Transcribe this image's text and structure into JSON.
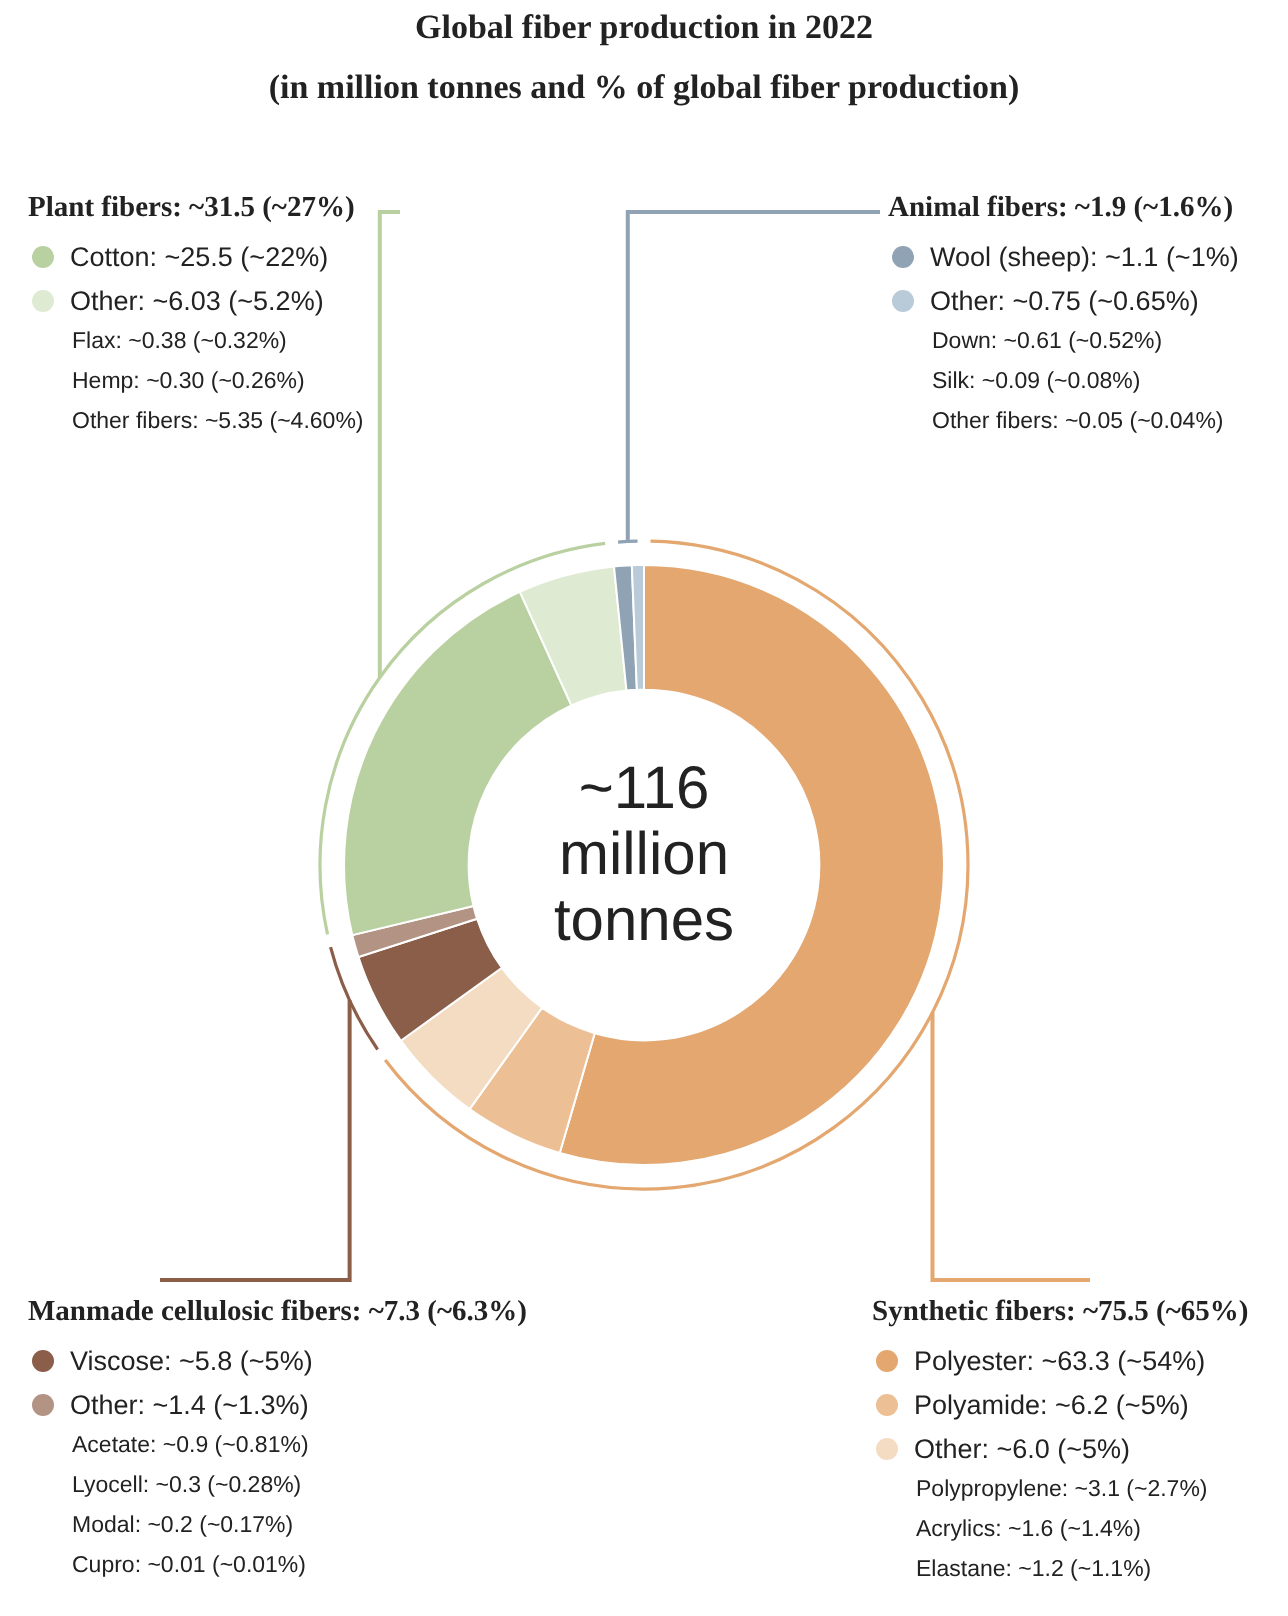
{
  "chart_data": {
    "type": "donut",
    "title": "Global fiber production in 2022",
    "subtitle": "(in million tonnes and % of global fiber production)",
    "categories": [
      "Polyester",
      "Polyamide",
      "Other",
      "Viscose",
      "Other",
      "Cotton",
      "Other",
      "Wool (sheep)",
      "Other"
    ],
    "values": [
      63.3,
      6.2,
      6.0,
      5.8,
      1.4,
      25.5,
      6.03,
      1.1,
      0.75
    ],
    "value_labels": [
      "~63.3 (~54%)",
      "~6.2 (~5%)",
      "~6.0 (~5%)",
      "~5.8 (~5%)",
      "~1.4 (~1.3%)",
      "~25.5 (~22%)",
      "~6.03 (~5.2%)",
      "~1.1 (~1%)",
      "~0.75 (~0.65%)"
    ],
    "legend": "top left",
    "colors": [
      "#e3a76f",
      "#ecc094",
      "#f4dcc2",
      "#8b5e4a",
      "#b39384",
      "#b9d1a1",
      "#dfead2",
      "#8fa3b5",
      "#b9cad9"
    ],
    "annotations": [
      "Plant fibers: ~31.5 (~27%)",
      "Flax: ~0.38 (~0.32%)",
      "Hemp: ~0.30 (~0.26%)",
      "Other fibers: ~5.35 (~4.60%)",
      "Animal fibers: ~1.9 (~1.6%)",
      "Down: ~0.61 (~0.52%)",
      "Silk: ~0.09 (~0.08%)",
      "Other fibers: ~0.05 (~0.04%)",
      "Manmade cellulosic fibers: ~7.3 (~6.3%)",
      "Acetate: ~0.9 (~0.81%)",
      "Lyocell: ~0.3 (~0.28%)",
      "Modal: ~0.2 (~0.17%)",
      "Cupro: ~0.01 (~0.01%)",
      "Synthetic fibers: ~75.5 (~65%)",
      "Polypropylene: ~3.1 (~2.7%)",
      "Acrylics: ~1.6 (~1.4%)",
      "Elastane: ~1.2 (~1.1%)",
      "~116 million tonnes"
    ]
  }
}
